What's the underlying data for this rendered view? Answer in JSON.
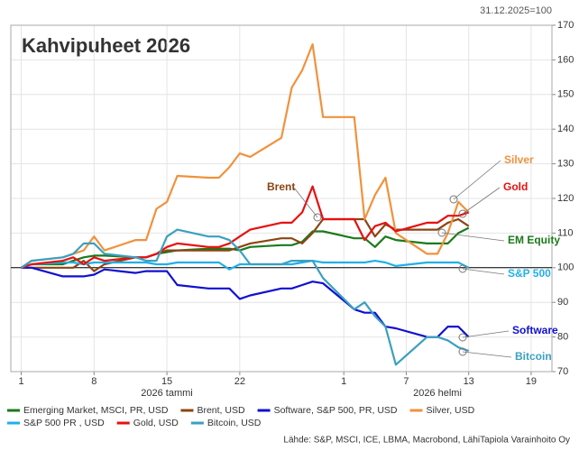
{
  "chart_data": {
    "type": "line",
    "title": "Kahvipuheet 2026",
    "subtitle": "31.12.2025=100",
    "source": "Lähde: S&P, MSCI, ICE, LBMA, Macrobond, LähiTapiola Varainhoito Oy",
    "x_group_labels": [
      "2026 tammi",
      "2026 helmi"
    ],
    "x": [
      "2026-01-01",
      "2026-01-02",
      "2026-01-05",
      "2026-01-06",
      "2026-01-07",
      "2026-01-08",
      "2026-01-09",
      "2026-01-12",
      "2026-01-13",
      "2026-01-14",
      "2026-01-15",
      "2026-01-16",
      "2026-01-19",
      "2026-01-20",
      "2026-01-21",
      "2026-01-22",
      "2026-01-23",
      "2026-01-26",
      "2026-01-27",
      "2026-01-28",
      "2026-01-29",
      "2026-01-30",
      "2026-02-02",
      "2026-02-03",
      "2026-02-04",
      "2026-02-05",
      "2026-02-06",
      "2026-02-09",
      "2026-02-10",
      "2026-02-11",
      "2026-02-12",
      "2026-02-13"
    ],
    "series": [
      {
        "name": "Emerging Market, MSCI, PR, USD",
        "color": "#1a7a1a",
        "values": [
          100,
          101,
          101,
          102,
          103,
          103.5,
          103.5,
          103,
          103,
          104,
          104.5,
          105,
          105.5,
          105.5,
          105.5,
          105,
          106,
          106.5,
          106.5,
          107.5,
          110.5,
          110.5,
          108.5,
          108.5,
          106,
          109,
          108,
          107,
          107,
          107,
          110,
          111.5
        ]
      },
      {
        "name": "Brent, USD",
        "color": "#8b4513",
        "values": [
          100,
          100,
          100,
          100,
          102,
          99,
          101,
          103,
          103,
          104,
          105,
          105,
          105,
          105,
          105,
          106,
          107,
          108.5,
          108.5,
          107,
          110,
          114,
          114,
          114,
          109,
          112.5,
          111,
          111,
          111,
          113,
          114,
          112
        ]
      },
      {
        "name": "Software, S&P 500, PR, USD",
        "color": "#1010d0",
        "values": [
          100,
          100,
          97.5,
          97.5,
          97.5,
          98,
          99.5,
          98.5,
          99,
          99,
          99,
          95,
          94,
          94,
          94,
          91,
          92,
          94,
          94,
          95,
          96,
          95.5,
          88,
          87,
          87,
          83,
          82.5,
          80,
          80,
          83,
          83,
          80
        ]
      },
      {
        "name": "Silver, USD",
        "color": "#f0923c",
        "values": [
          100,
          102,
          103,
          104,
          105,
          109,
          105,
          108,
          108,
          117,
          119,
          126.5,
          126,
          126,
          129,
          133,
          132,
          137.5,
          152,
          157,
          164.5,
          143.5,
          143.5,
          114,
          121,
          126,
          110,
          104,
          104,
          110,
          119,
          116
        ]
      },
      {
        "name": "S&P 500 PR , USD",
        "color": "#20b0e8",
        "values": [
          100,
          101,
          101.5,
          101.5,
          101,
          101.5,
          101.5,
          101.5,
          101.5,
          101,
          101,
          101.5,
          101.5,
          101.5,
          99.5,
          101,
          101,
          101,
          101,
          101.5,
          102,
          101.5,
          101.5,
          101.5,
          102,
          101.5,
          100.5,
          101.5,
          101.5,
          101.5,
          101.5,
          100
        ]
      },
      {
        "name": "Gold, USD",
        "color": "#e81010",
        "values": [
          100,
          101,
          102,
          103,
          101,
          103,
          102,
          103,
          103,
          104,
          106,
          107,
          106,
          106,
          107,
          109,
          111,
          113,
          113,
          116,
          123.5,
          114,
          114,
          108,
          112,
          113,
          110.5,
          113,
          113,
          115,
          115,
          116
        ]
      },
      {
        "name": "Bitcoin, USD",
        "color": "#3aa0c0",
        "values": [
          100,
          102,
          103,
          104,
          107,
          107,
          104,
          103,
          102,
          102,
          109,
          111,
          109,
          109,
          108,
          105,
          101,
          101,
          102,
          102,
          102,
          97,
          88,
          90,
          86,
          83,
          72,
          80,
          80,
          79,
          77,
          76
        ]
      }
    ],
    "annotations": [
      {
        "text": "Silver",
        "color": "#f0923c"
      },
      {
        "text": "Gold",
        "color": "#e81010"
      },
      {
        "text": "Brent",
        "color": "#8b4513"
      },
      {
        "text": "EM Equity",
        "color": "#1a7a1a"
      },
      {
        "text": "S&P 500",
        "color": "#20b0e8"
      },
      {
        "text": "Software",
        "color": "#1010d0"
      },
      {
        "text": "Bitcoin",
        "color": "#3aa0c0"
      }
    ],
    "xlim": [
      "2025-12-31",
      "2026-02-21"
    ],
    "xticks": [
      {
        "value": "2026-01-01",
        "label": "1"
      },
      {
        "value": "2026-01-08",
        "label": "8"
      },
      {
        "value": "2026-01-15",
        "label": "15"
      },
      {
        "value": "2026-01-22",
        "label": "22"
      },
      {
        "value": "2026-02-01",
        "label": "1"
      },
      {
        "value": "2026-02-07",
        "label": "7"
      },
      {
        "value": "2026-02-13",
        "label": "13"
      },
      {
        "value": "2026-02-19",
        "label": "19"
      }
    ],
    "ylim": [
      70,
      170
    ],
    "yticks": [
      70,
      80,
      90,
      100,
      110,
      120,
      130,
      140,
      150,
      160,
      170
    ],
    "reference_line": 100,
    "grid": true
  }
}
